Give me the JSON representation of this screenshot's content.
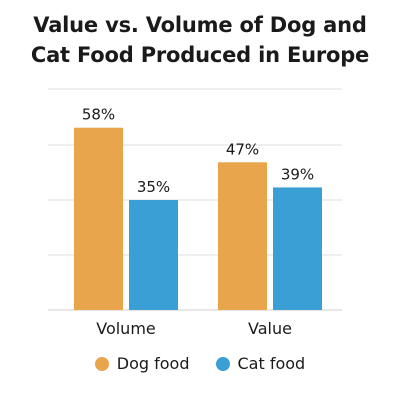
{
  "chart_data": {
    "type": "bar",
    "title_lines": [
      "Value vs. Volume of Dog and",
      "Cat Food Produced in Europe"
    ],
    "categories": [
      "Volume",
      "Value"
    ],
    "series": [
      {
        "name": "Dog food",
        "values": [
          58,
          47
        ],
        "labels": [
          "58%",
          "47%"
        ],
        "color": "#E8A54B"
      },
      {
        "name": "Cat food",
        "values": [
          35,
          39
        ],
        "labels": [
          "35%",
          "39%"
        ],
        "color": "#3A9FD4"
      }
    ],
    "ylim": [
      0,
      70
    ],
    "grid": true,
    "legend_position": "bottom"
  }
}
